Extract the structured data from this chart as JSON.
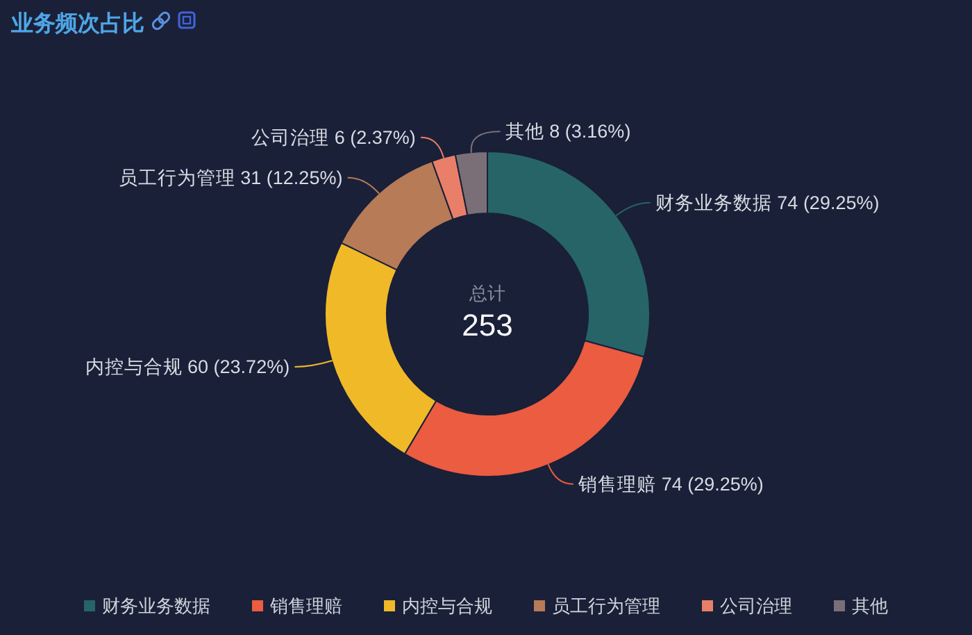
{
  "chart_data": {
    "type": "donut",
    "title": "业务频次占比",
    "categories": [
      "财务业务数据",
      "销售理赔",
      "内控与合规",
      "员工行为管理",
      "公司治理",
      "其他"
    ],
    "values": [
      74,
      74,
      60,
      31,
      6,
      8
    ],
    "colors": [
      "#266468",
      "#eb5c40",
      "#f0b928",
      "#b77b57",
      "#ea7f69",
      "#7b6f77"
    ],
    "value_labels": [
      "财务业务数据 74 (29.25%)",
      "销售理赔 74 (29.25%)",
      "内控与合规 60 (23.72%)",
      "员工行为管理 31 (12.25%)",
      "公司治理 6 (2.37%)",
      "其他 8 (3.16%)"
    ],
    "annotations": [
      "总计",
      "253"
    ],
    "legend": "bottom"
  }
}
